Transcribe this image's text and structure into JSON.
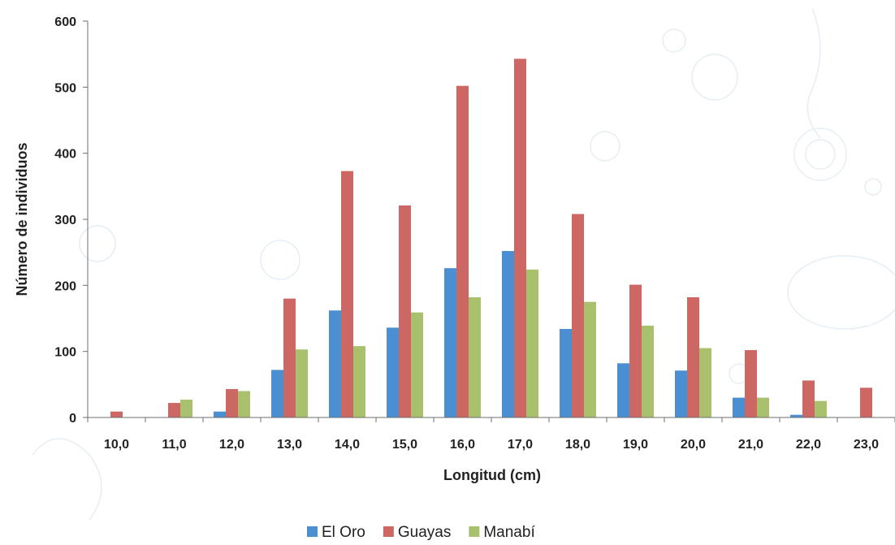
{
  "chart_data": {
    "type": "bar",
    "title": "",
    "xlabel": "Longitud (cm)",
    "ylabel": "Número de individuos",
    "ylim": [
      0,
      600
    ],
    "yticks": [
      0,
      100,
      200,
      300,
      400,
      500,
      600
    ],
    "categories": [
      "10,0",
      "11,0",
      "12,0",
      "13,0",
      "14,0",
      "15,0",
      "16,0",
      "17,0",
      "18,0",
      "19,0",
      "20,0",
      "21,0",
      "22,0",
      "23,0"
    ],
    "series": [
      {
        "name": "El Oro",
        "color": "#4a8fd1",
        "values": [
          0,
          0,
          9,
          72,
          162,
          136,
          226,
          252,
          134,
          82,
          71,
          30,
          4,
          0
        ]
      },
      {
        "name": "Guayas",
        "color": "#cd6764",
        "values": [
          9,
          22,
          43,
          180,
          373,
          321,
          502,
          543,
          308,
          201,
          182,
          102,
          56,
          45
        ]
      },
      {
        "name": "Manabí",
        "color": "#a9c16d",
        "values": [
          0,
          27,
          40,
          103,
          108,
          159,
          182,
          224,
          175,
          139,
          105,
          30,
          25,
          0
        ]
      }
    ],
    "grid": false,
    "legend": "bottom"
  }
}
